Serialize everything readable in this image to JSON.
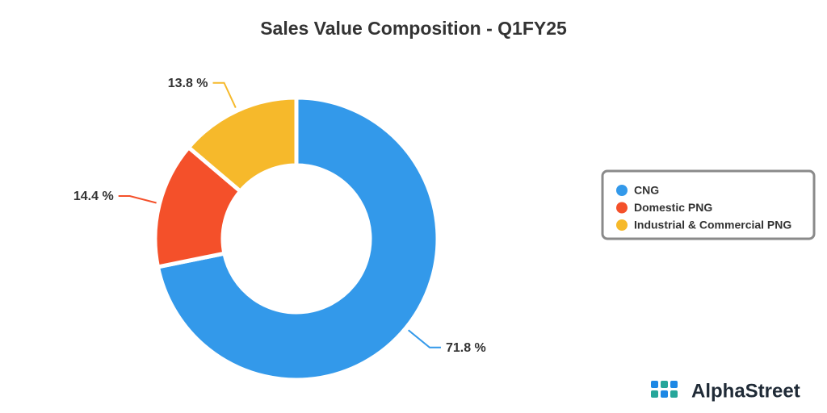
{
  "chart_data": {
    "type": "donut",
    "title": "Sales Value Composition - Q1FY25",
    "categories": [
      "CNG",
      "Domestic PNG",
      "Industrial & Commercial PNG"
    ],
    "values": [
      71.8,
      14.4,
      13.8
    ],
    "value_labels": [
      "71.8 %",
      "14.4 %",
      "13.8 %"
    ],
    "colors": [
      "#3399ea",
      "#f4502a",
      "#f6b92b"
    ],
    "legend": "right"
  },
  "logo": {
    "text": "AlphaStreet"
  }
}
